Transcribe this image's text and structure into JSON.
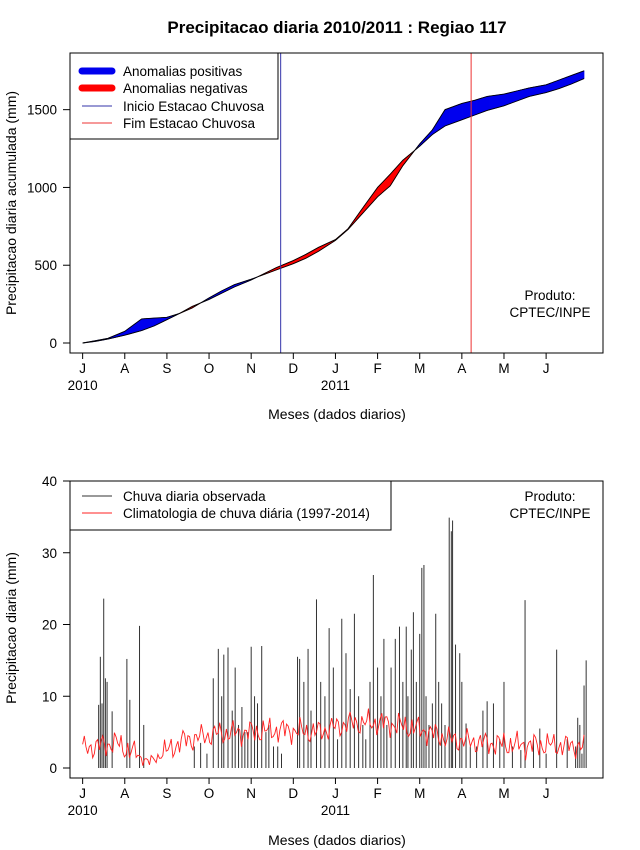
{
  "figure": {
    "title": "Precipitacao diaria 2010/2011 : Regiao 117",
    "credit_line1": "Produto:",
    "credit_line2": "CPTEC/INPE"
  },
  "colors": {
    "positive": "#0000ee",
    "negative": "#ff0000",
    "start_line": "#3333aa",
    "end_line": "#ee3333",
    "obs": "#333333",
    "clim": "#ff2020"
  },
  "chart_data": [
    {
      "type": "area",
      "id": "cumulative",
      "title": "Precipitacao diaria 2010/2011 : Regiao 117",
      "xlabel": "Meses (dados diarios)",
      "ylabel": "Precipitacao diaria acumulada (mm)",
      "ylim": [
        0,
        1800
      ],
      "yticks": [
        0,
        500,
        1000,
        1500
      ],
      "xlim": [
        -0.3,
        12.35
      ],
      "months": [
        "J",
        "A",
        "S",
        "O",
        "N",
        "D",
        "J",
        "F",
        "M",
        "A",
        "M",
        "J"
      ],
      "year_labels": [
        {
          "month_index": 0,
          "label": "2010"
        },
        {
          "month_index": 6,
          "label": "2011"
        }
      ],
      "legend": [
        "Anomalias positivas",
        "Anomalias negativas",
        "Inicio Estacao Chuvosa",
        "Fim Estacao Chuvosa"
      ],
      "legend_position": "top-left",
      "season_start_month": 4.7,
      "season_end_month": 9.22,
      "x_months": [
        0,
        0.3,
        0.6,
        1,
        1.4,
        1.7,
        2,
        2.3,
        2.6,
        3,
        3.3,
        3.6,
        4,
        4.3,
        4.6,
        5,
        5.3,
        5.6,
        6,
        6.3,
        6.6,
        7,
        7.3,
        7.6,
        8,
        8.3,
        8.6,
        9,
        9.3,
        9.6,
        10,
        10.3,
        10.6,
        11,
        11.3,
        11.6,
        11.9
      ],
      "observed_cumulative": [
        0,
        15,
        30,
        75,
        155,
        160,
        165,
        190,
        225,
        290,
        335,
        375,
        410,
        440,
        470,
        510,
        545,
        590,
        660,
        730,
        820,
        940,
        1010,
        1140,
        1280,
        1370,
        1500,
        1540,
        1560,
        1585,
        1600,
        1620,
        1640,
        1660,
        1690,
        1720,
        1750
      ],
      "climatology_cumulative": [
        0,
        10,
        25,
        50,
        80,
        110,
        150,
        190,
        235,
        280,
        320,
        360,
        405,
        445,
        485,
        530,
        570,
        615,
        665,
        735,
        850,
        1000,
        1085,
        1175,
        1265,
        1340,
        1395,
        1435,
        1465,
        1495,
        1525,
        1555,
        1585,
        1610,
        1635,
        1665,
        1700
      ]
    },
    {
      "type": "bar",
      "id": "daily",
      "xlabel": "Meses (dados diarios)",
      "ylabel": "Precipitacao diaria (mm)",
      "ylim": [
        0,
        40
      ],
      "yticks": [
        0,
        10,
        20,
        30,
        40
      ],
      "xlim": [
        -0.3,
        12.35
      ],
      "months": [
        "J",
        "A",
        "S",
        "O",
        "N",
        "D",
        "J",
        "F",
        "M",
        "A",
        "M",
        "J"
      ],
      "year_labels": [
        {
          "month_index": 0,
          "label": "2010"
        },
        {
          "month_index": 6,
          "label": "2011"
        }
      ],
      "legend": [
        "Chuva diaria observada",
        "Climatologia de chuva diária (1997-2014)"
      ],
      "legend_position": "top-left",
      "observed_peaks": [
        [
          0.38,
          8.8
        ],
        [
          0.42,
          15.5
        ],
        [
          0.46,
          9
        ],
        [
          0.5,
          23.6
        ],
        [
          0.54,
          12.5
        ],
        [
          0.58,
          12
        ],
        [
          0.7,
          7.9
        ],
        [
          1.05,
          15.2
        ],
        [
          1.12,
          9.5
        ],
        [
          1.35,
          19.8
        ],
        [
          1.45,
          6
        ],
        [
          2.65,
          3
        ],
        [
          2.8,
          3.5
        ],
        [
          2.95,
          2
        ],
        [
          3.1,
          12.5
        ],
        [
          3.22,
          16.6
        ],
        [
          3.3,
          10
        ],
        [
          3.35,
          15.8
        ],
        [
          3.45,
          16.8
        ],
        [
          3.55,
          8
        ],
        [
          3.62,
          14
        ],
        [
          3.7,
          6
        ],
        [
          3.78,
          8.5
        ],
        [
          3.85,
          5
        ],
        [
          3.92,
          5
        ],
        [
          4.0,
          16.9
        ],
        [
          4.08,
          10
        ],
        [
          4.15,
          9
        ],
        [
          4.25,
          17
        ],
        [
          4.35,
          5
        ],
        [
          4.42,
          6
        ],
        [
          4.53,
          3
        ],
        [
          4.63,
          3
        ],
        [
          4.72,
          2
        ],
        [
          5.1,
          15.5
        ],
        [
          5.15,
          15.2
        ],
        [
          5.25,
          12
        ],
        [
          5.35,
          16.6
        ],
        [
          5.42,
          8
        ],
        [
          5.55,
          23.5
        ],
        [
          5.65,
          12
        ],
        [
          5.75,
          10
        ],
        [
          5.85,
          19.5
        ],
        [
          5.95,
          14
        ],
        [
          6.05,
          4
        ],
        [
          6.15,
          20.8
        ],
        [
          6.25,
          16
        ],
        [
          6.35,
          11
        ],
        [
          6.45,
          21.5
        ],
        [
          6.55,
          10
        ],
        [
          6.65,
          6
        ],
        [
          6.72,
          4
        ],
        [
          6.82,
          12
        ],
        [
          6.9,
          26.9
        ],
        [
          7.0,
          14
        ],
        [
          7.08,
          10
        ],
        [
          7.15,
          18
        ],
        [
          7.22,
          6
        ],
        [
          7.32,
          14
        ],
        [
          7.42,
          18
        ],
        [
          7.52,
          19.7
        ],
        [
          7.6,
          12
        ],
        [
          7.68,
          19.7
        ],
        [
          7.72,
          10
        ],
        [
          7.8,
          16.5
        ],
        [
          7.85,
          21.7
        ],
        [
          7.92,
          12
        ],
        [
          8.0,
          18.7
        ],
        [
          8.05,
          27.9
        ],
        [
          8.1,
          28.3
        ],
        [
          8.15,
          10
        ],
        [
          8.22,
          6
        ],
        [
          8.3,
          9
        ],
        [
          8.38,
          21.5
        ],
        [
          8.45,
          12
        ],
        [
          8.52,
          9
        ],
        [
          8.6,
          6
        ],
        [
          8.7,
          34.9
        ],
        [
          8.75,
          33
        ],
        [
          8.78,
          34.5
        ],
        [
          8.85,
          17.2
        ],
        [
          8.95,
          16
        ],
        [
          9.0,
          12
        ],
        [
          9.1,
          6.2
        ],
        [
          9.2,
          3
        ],
        [
          9.35,
          3
        ],
        [
          9.5,
          8
        ],
        [
          9.6,
          9.3
        ],
        [
          9.75,
          9
        ],
        [
          9.9,
          4
        ],
        [
          10.0,
          12
        ],
        [
          10.2,
          3
        ],
        [
          10.4,
          2.5
        ],
        [
          10.5,
          23.4
        ],
        [
          10.7,
          4
        ],
        [
          10.85,
          5.5
        ],
        [
          11.0,
          2
        ],
        [
          11.25,
          16.5
        ],
        [
          11.5,
          4
        ],
        [
          11.7,
          3
        ],
        [
          11.75,
          7
        ],
        [
          11.8,
          6
        ],
        [
          11.85,
          2
        ],
        [
          11.9,
          11.5
        ],
        [
          11.95,
          15
        ]
      ],
      "climatology_mean_by_month": [
        2.7,
        3.5,
        0.8,
        3.8,
        4.8,
        5.0,
        5.3,
        5.0,
        6.3,
        6.3,
        5.5,
        4.0,
        3.5,
        3.2,
        3.2,
        3.0
      ]
    }
  ]
}
